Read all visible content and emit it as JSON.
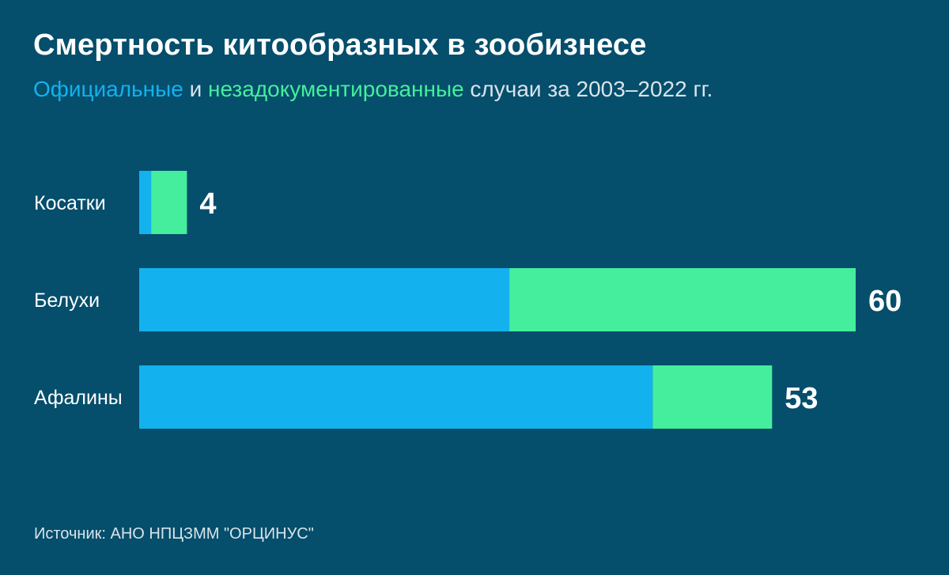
{
  "colors": {
    "background": "#054e6c",
    "official": "#13b2ee",
    "undocumented": "#45ee9c",
    "text": "#ffffff",
    "muted": "#d9e4ea"
  },
  "subtitle": {
    "official": "Официальные",
    "and": "и",
    "undocumented": "незадокументированные",
    "rest": "случаи за 2003–2022 гг."
  },
  "source": "Источник: АНО НПЦЗММ \"ОРЦИНУС\"",
  "chart_data": {
    "type": "bar",
    "orientation": "horizontal",
    "stacked": true,
    "title": "Смертность китообразных в зообизнесе",
    "categories": [
      "Косатки",
      "Белухи",
      "Афалины"
    ],
    "series": [
      {
        "name": "Официальные",
        "values": [
          1,
          31,
          43
        ]
      },
      {
        "name": "незадокументированные",
        "values": [
          3,
          29,
          10
        ]
      }
    ],
    "totals": [
      "4",
      "60",
      "53"
    ],
    "xlim": [
      0,
      60
    ],
    "grid": false,
    "legend": "in-subtitle"
  }
}
